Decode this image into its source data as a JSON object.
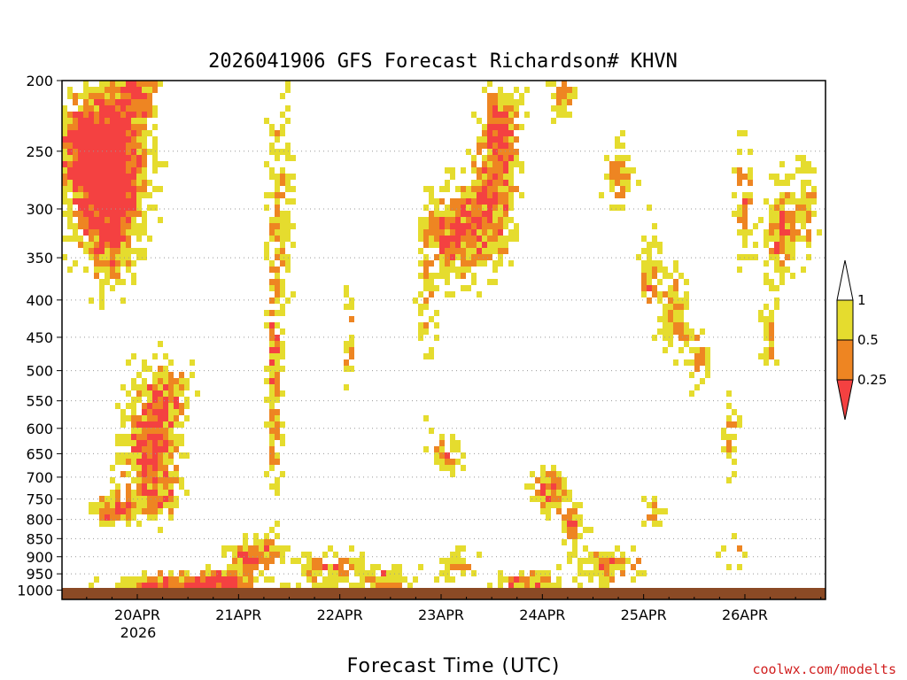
{
  "chart_data": {
    "type": "heatmap",
    "title": "2026041906 GFS Forecast Richardson# KHVN",
    "xlabel": "Forecast Time (UTC)",
    "ylabel": "",
    "credit": "coolwx.com/modelts",
    "y_ticks": [
      "200",
      "250",
      "300",
      "350",
      "400",
      "450",
      "500",
      "550",
      "600",
      "650",
      "700",
      "750",
      "800",
      "850",
      "900",
      "950",
      "1000"
    ],
    "y_range": [
      1030,
      200
    ],
    "x_ticks": [
      "20APR",
      "21APR",
      "22APR",
      "23APR",
      "24APR",
      "25APR",
      "26APR"
    ],
    "x_year": "2026",
    "legend": [
      {
        "label": "1",
        "color": "#ffffff"
      },
      {
        "label": "0.5",
        "color": "#e5dc2e"
      },
      {
        "label": "0.25",
        "color": "#ee8522"
      },
      {
        "label": "",
        "color": "#f44141"
      }
    ],
    "colors": {
      "yellow": "#e5dc2e",
      "orange": "#ee8522",
      "red": "#f44141",
      "ground": "#8b4a25"
    }
  }
}
